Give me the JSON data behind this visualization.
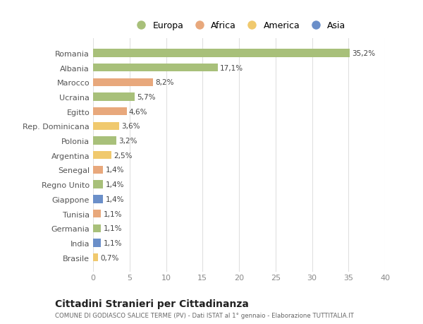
{
  "countries": [
    "Romania",
    "Albania",
    "Marocco",
    "Ucraina",
    "Egitto",
    "Rep. Dominicana",
    "Polonia",
    "Argentina",
    "Senegal",
    "Regno Unito",
    "Giappone",
    "Tunisia",
    "Germania",
    "India",
    "Brasile"
  ],
  "values": [
    35.2,
    17.1,
    8.2,
    5.7,
    4.6,
    3.6,
    3.2,
    2.5,
    1.4,
    1.4,
    1.4,
    1.1,
    1.1,
    1.1,
    0.7
  ],
  "labels": [
    "35,2%",
    "17,1%",
    "8,2%",
    "5,7%",
    "4,6%",
    "3,6%",
    "3,2%",
    "2,5%",
    "1,4%",
    "1,4%",
    "1,4%",
    "1,1%",
    "1,1%",
    "1,1%",
    "0,7%"
  ],
  "colors": [
    "#a8c07a",
    "#a8c07a",
    "#e8a87c",
    "#a8c07a",
    "#e8a87c",
    "#f0c96e",
    "#a8c07a",
    "#f0c96e",
    "#e8a87c",
    "#a8c07a",
    "#6b8fc9",
    "#e8a87c",
    "#a8c07a",
    "#6b8fc9",
    "#f0c96e"
  ],
  "legend_labels": [
    "Europa",
    "Africa",
    "America",
    "Asia"
  ],
  "legend_colors": [
    "#a8c07a",
    "#e8a87c",
    "#f0c96e",
    "#6b8fc9"
  ],
  "title": "Cittadini Stranieri per Cittadinanza",
  "subtitle": "COMUNE DI GODIASCO SALICE TERME (PV) - Dati ISTAT al 1° gennaio - Elaborazione TUTTITALIA.IT",
  "xlim": [
    0,
    40
  ],
  "xticks": [
    0,
    5,
    10,
    15,
    20,
    25,
    30,
    35,
    40
  ],
  "background_color": "#ffffff",
  "grid_color": "#e0e0e0"
}
